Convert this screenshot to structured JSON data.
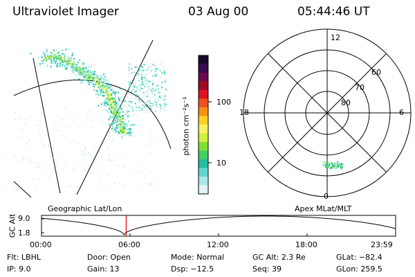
{
  "header": {
    "title": "Ultraviolet Imager",
    "date": "03 Aug 00",
    "time": "05:44:46 UT"
  },
  "colorbar": {
    "unit_label": "photon cm⁻²s⁻¹",
    "tick_labels": [
      "100",
      "10"
    ],
    "colors": [
      "#1a0a2a",
      "#3a0a50",
      "#6a0a50",
      "#a00a20",
      "#e01020",
      "#f05020",
      "#f89010",
      "#ffd020",
      "#fff060",
      "#d0f040",
      "#80e030",
      "#40d060",
      "#20c0a0",
      "#60d8d0",
      "#a8e8e8",
      "#e0f4f4"
    ]
  },
  "geo_panel": {
    "label": "Geographic Lat/Lon"
  },
  "polar_panel": {
    "label": "Apex MLat/MLT",
    "mlt_labels": {
      "top": "12",
      "right": "6",
      "bottom": "0",
      "left": "18"
    },
    "lat_labels": [
      "60",
      "70",
      "80"
    ]
  },
  "altitude_plot": {
    "ylabel": "GC Alt",
    "y_ticks": [
      "9.0",
      "1.8"
    ],
    "x_ticks": [
      "00:00",
      "06:00",
      "12:00",
      "18:00",
      "23:59"
    ],
    "current_time_hours": 5.74
  },
  "info": {
    "flt_label": "Flt:",
    "flt_value": "LBHL",
    "ip_label": "IP:",
    "ip_value": "9.0",
    "door_label": "Door:",
    "door_value": "Open",
    "gain_label": "Gain:",
    "gain_value": "13",
    "mode_label": "Mode:",
    "mode_value": "Normal",
    "dsp_label": "Dsp:",
    "dsp_value": "−12.5",
    "gcalt_label": "GC Alt:",
    "gcalt_value": "2.3 Re",
    "seq_label": "Seq:",
    "seq_value": "39",
    "glat_label": "GLat:",
    "glat_value": "−82.4",
    "glon_label": "GLon:",
    "glon_value": "259.5"
  }
}
